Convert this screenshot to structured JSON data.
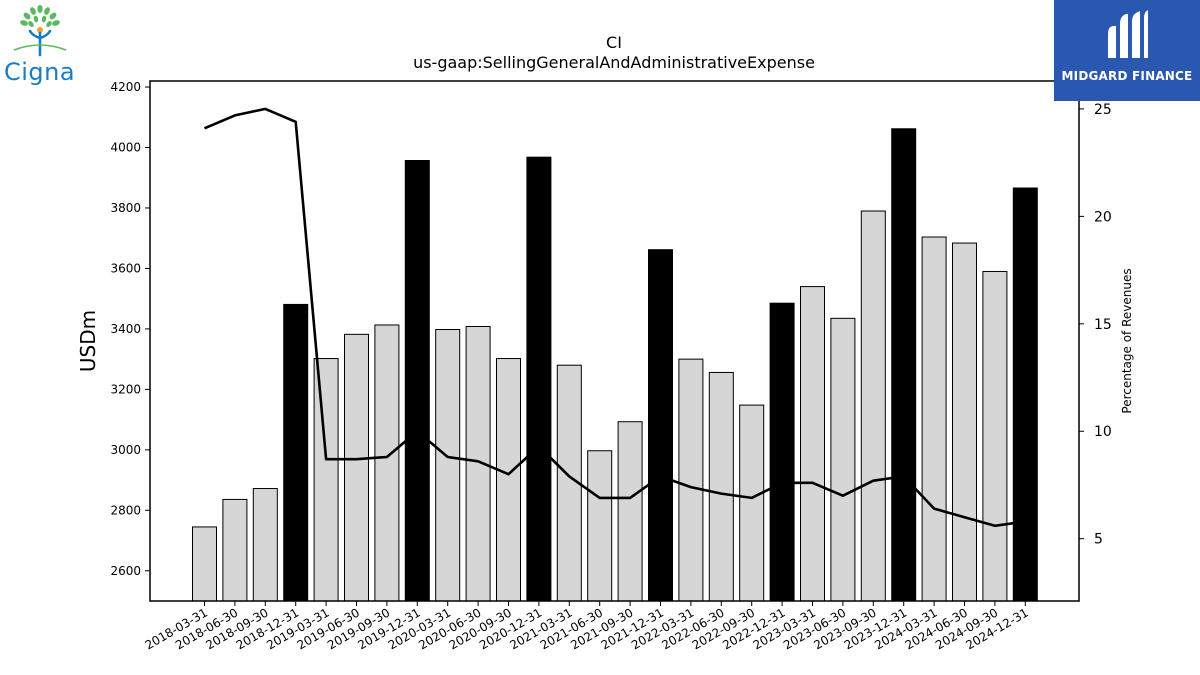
{
  "header": {
    "title": "CI",
    "subtitle": "us-gaap:SellingGeneralAndAdministrativeExpense"
  },
  "logos": {
    "left_brand": "Cigna",
    "right_brand": "MIDGARD FINANCE"
  },
  "colors": {
    "bar_regular": "#d6d6d6",
    "bar_year_end": "#000000",
    "line": "#000000",
    "cigna_blue": "#1a7cc4",
    "cigna_green": "#5cb85c",
    "midgard_bg": "#2a57b0"
  },
  "chart_data": {
    "type": "bar",
    "title": "CI",
    "subtitle": "us-gaap:SellingGeneralAndAdministrativeExpense",
    "ylabel": "USDm",
    "y2label": "Percentage of Revenues",
    "ylim": [
      2500,
      4220
    ],
    "y2lim": [
      2.1,
      26.3
    ],
    "yticks": [
      2600,
      2800,
      3000,
      3200,
      3400,
      3600,
      3800,
      4000,
      4200
    ],
    "y2ticks": [
      5,
      10,
      15,
      20,
      25
    ],
    "categories": [
      "2018-03-31",
      "2018-06-30",
      "2018-09-30",
      "2018-12-31",
      "2019-03-31",
      "2019-06-30",
      "2019-09-30",
      "2019-12-31",
      "2020-03-31",
      "2020-06-30",
      "2020-09-30",
      "2020-12-31",
      "2021-03-31",
      "2021-06-30",
      "2021-09-30",
      "2021-12-31",
      "2022-03-31",
      "2022-06-30",
      "2022-09-30",
      "2022-12-31",
      "2023-03-31",
      "2023-06-30",
      "2023-09-30",
      "2023-12-31",
      "2024-03-31",
      "2024-06-30",
      "2024-09-30",
      "2024-12-31"
    ],
    "series": [
      {
        "type": "bar",
        "values": [
          2745,
          2836,
          2872,
          3481,
          3302,
          3382,
          3413,
          3957,
          3398,
          3408,
          3302,
          3968,
          3280,
          2997,
          3093,
          3662,
          3300,
          3256,
          3148,
          3485,
          3540,
          3435,
          3790,
          4062,
          3704,
          3684,
          3590,
          3866
        ],
        "highlight": [
          false,
          false,
          false,
          true,
          false,
          false,
          false,
          true,
          false,
          false,
          false,
          true,
          false,
          false,
          false,
          true,
          false,
          false,
          false,
          true,
          false,
          false,
          false,
          true,
          false,
          false,
          false,
          true
        ]
      },
      {
        "type": "line",
        "axis": "right",
        "values": [
          24.1,
          24.7,
          25.0,
          24.4,
          8.7,
          8.7,
          8.8,
          10.0,
          8.8,
          8.6,
          8.0,
          9.3,
          7.9,
          6.9,
          6.9,
          7.9,
          7.4,
          7.1,
          6.9,
          7.6,
          7.6,
          7.0,
          7.7,
          7.9,
          6.4,
          6.0,
          5.6,
          5.8
        ]
      }
    ],
    "grid": false
  }
}
